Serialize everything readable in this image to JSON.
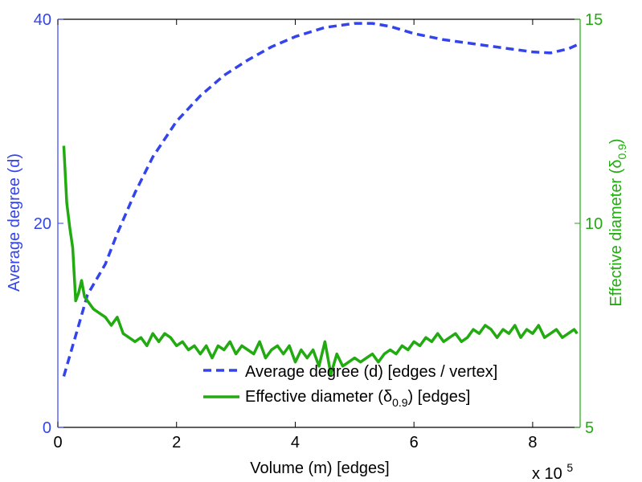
{
  "chart_data": {
    "type": "line",
    "xlabel": "Volume (m) [edges]",
    "x_exponent_label": "x 10",
    "x_exponent_power": "5",
    "xlim": [
      0,
      8.8
    ],
    "xticks": [
      0,
      2,
      4,
      6,
      8
    ],
    "left_axis": {
      "label": "Average degree (d)",
      "ylim": [
        0,
        40
      ],
      "ticks": [
        0,
        20,
        40
      ],
      "color": "#3344ee"
    },
    "right_axis": {
      "label_main": "Effective diameter (",
      "label_symbol": "δ",
      "label_sub": "0.9",
      "label_close": ")",
      "ylim": [
        5,
        15
      ],
      "ticks": [
        5,
        10,
        15
      ],
      "color": "#22aa11"
    },
    "series": [
      {
        "name": "Average degree (d) [edges / vertex]",
        "axis": "left",
        "style": "dashed",
        "color": "#3344ee",
        "x": [
          0.1,
          0.3,
          0.5,
          0.8,
          1.0,
          1.3,
          1.6,
          2.0,
          2.4,
          2.8,
          3.2,
          3.6,
          4.0,
          4.5,
          5.0,
          5.3,
          5.6,
          6.0,
          6.5,
          7.0,
          7.5,
          8.0,
          8.3,
          8.6,
          8.75
        ],
        "values": [
          5.0,
          9.0,
          13.0,
          16.0,
          19.0,
          23.0,
          26.5,
          30.0,
          32.5,
          34.5,
          36.0,
          37.3,
          38.3,
          39.2,
          39.6,
          39.6,
          39.3,
          38.6,
          38.0,
          37.6,
          37.2,
          36.8,
          36.7,
          37.1,
          37.5
        ]
      },
      {
        "name_main": "Effective diameter (",
        "name_symbol": "δ",
        "name_sub": "0.9",
        "name_tail": ") [edges]",
        "axis": "right",
        "style": "solid",
        "color": "#22aa11",
        "x": [
          0.1,
          0.15,
          0.2,
          0.25,
          0.3,
          0.35,
          0.4,
          0.45,
          0.5,
          0.6,
          0.7,
          0.8,
          0.9,
          1.0,
          1.1,
          1.2,
          1.3,
          1.4,
          1.5,
          1.6,
          1.7,
          1.8,
          1.9,
          2.0,
          2.1,
          2.2,
          2.3,
          2.4,
          2.5,
          2.6,
          2.7,
          2.8,
          2.9,
          3.0,
          3.1,
          3.2,
          3.3,
          3.4,
          3.5,
          3.6,
          3.7,
          3.8,
          3.9,
          4.0,
          4.1,
          4.2,
          4.3,
          4.4,
          4.5,
          4.6,
          4.7,
          4.8,
          4.9,
          5.0,
          5.1,
          5.2,
          5.3,
          5.4,
          5.5,
          5.6,
          5.7,
          5.8,
          5.9,
          6.0,
          6.1,
          6.2,
          6.3,
          6.4,
          6.5,
          6.6,
          6.7,
          6.8,
          6.9,
          7.0,
          7.1,
          7.2,
          7.3,
          7.4,
          7.5,
          7.6,
          7.7,
          7.8,
          7.9,
          8.0,
          8.1,
          8.2,
          8.3,
          8.4,
          8.5,
          8.6,
          8.7,
          8.75
        ],
        "values": [
          11.9,
          10.5,
          9.9,
          9.4,
          8.1,
          8.3,
          8.6,
          8.2,
          8.1,
          7.9,
          7.8,
          7.7,
          7.5,
          7.7,
          7.3,
          7.2,
          7.1,
          7.2,
          7.0,
          7.3,
          7.1,
          7.3,
          7.2,
          7.0,
          7.1,
          6.9,
          7.0,
          6.8,
          7.0,
          6.7,
          7.0,
          6.9,
          7.1,
          6.8,
          7.0,
          6.9,
          6.8,
          7.1,
          6.7,
          6.9,
          7.0,
          6.8,
          7.0,
          6.6,
          6.9,
          6.7,
          6.9,
          6.5,
          7.1,
          6.3,
          6.8,
          6.5,
          6.6,
          6.7,
          6.6,
          6.7,
          6.8,
          6.6,
          6.8,
          6.9,
          6.8,
          7.0,
          6.9,
          7.1,
          7.0,
          7.2,
          7.1,
          7.3,
          7.1,
          7.2,
          7.3,
          7.1,
          7.2,
          7.4,
          7.3,
          7.5,
          7.4,
          7.2,
          7.4,
          7.3,
          7.5,
          7.2,
          7.4,
          7.3,
          7.5,
          7.2,
          7.3,
          7.4,
          7.2,
          7.3,
          7.4,
          7.3
        ]
      }
    ],
    "legend_position": "bottom-right"
  }
}
